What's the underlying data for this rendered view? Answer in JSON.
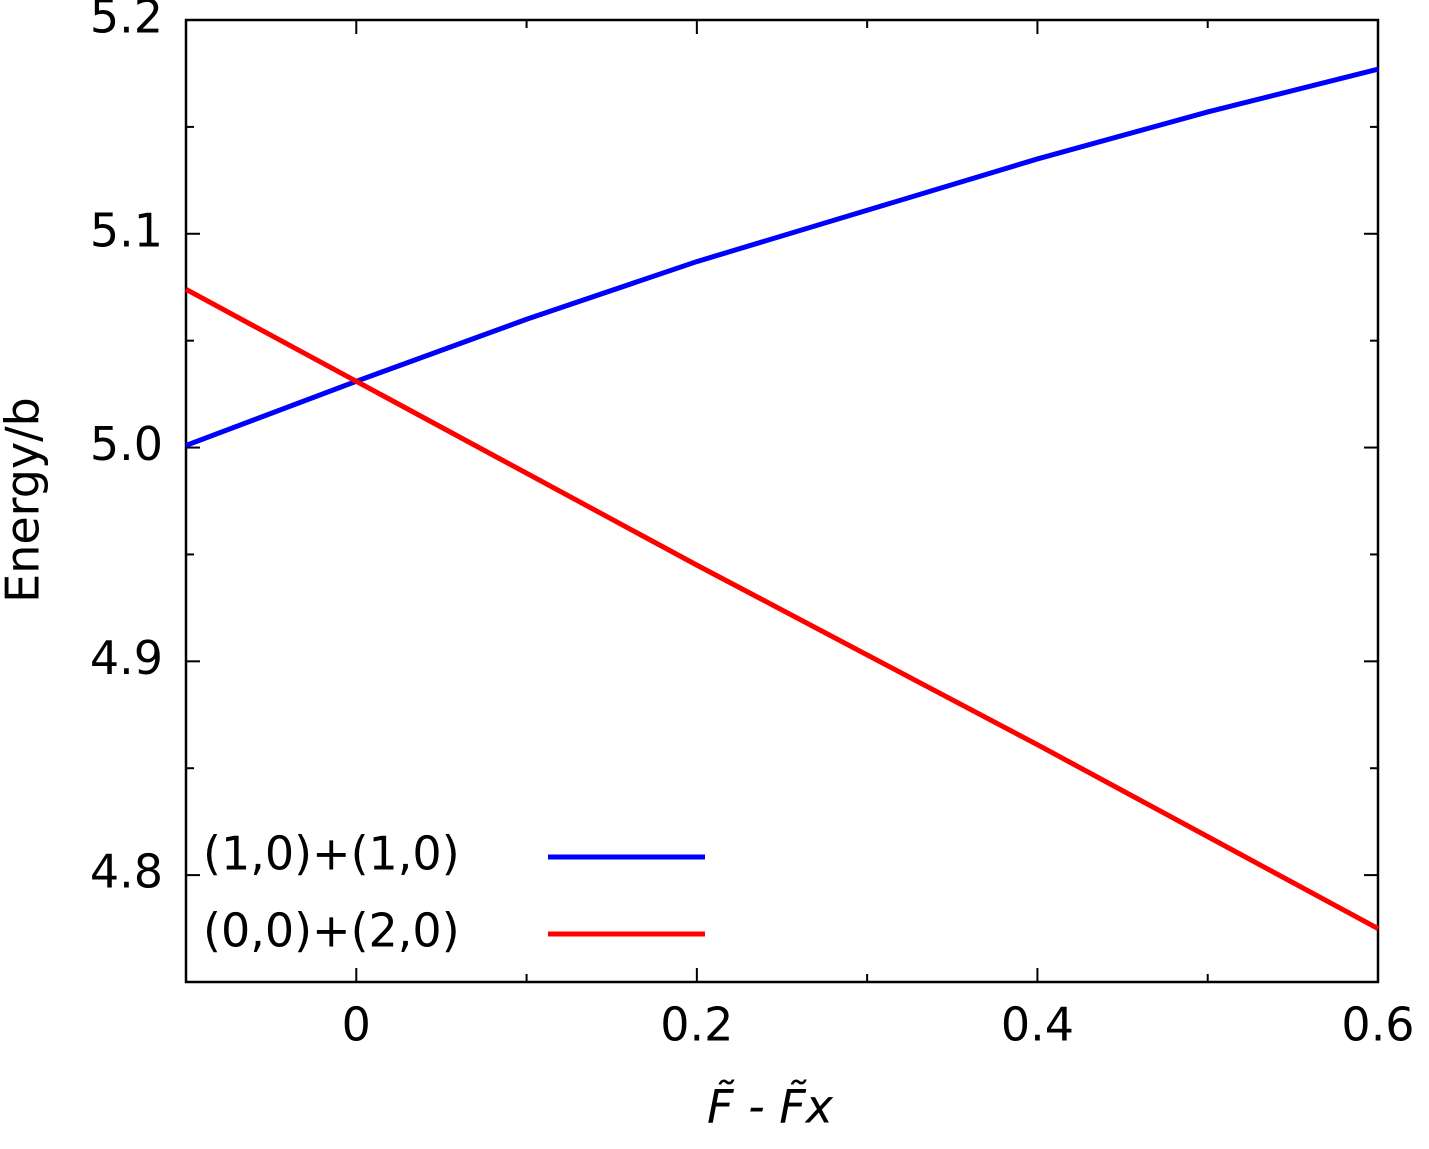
{
  "chart_data": {
    "type": "line",
    "xlabel": "F̃ - F̃x",
    "ylabel": "Energy/b",
    "x": [
      -0.1,
      0,
      0.1,
      0.2,
      0.3,
      0.4,
      0.5,
      0.6
    ],
    "series": [
      {
        "name": "(1,0)+(1,0)",
        "color": "#0000ff",
        "values": [
          5.001,
          5.031,
          5.06,
          5.087,
          5.111,
          5.135,
          5.157,
          5.177
        ]
      },
      {
        "name": "(0,0)+(2,0)",
        "color": "#ff0000",
        "values": [
          5.074,
          5.031,
          4.988,
          4.945,
          4.903,
          4.861,
          4.818,
          4.775
        ]
      }
    ],
    "xlim": [
      -0.1,
      0.6
    ],
    "xticks": [
      0,
      0.2,
      0.4,
      0.6
    ],
    "ylim": [
      4.75,
      5.2
    ],
    "yticks": [
      4.8,
      4.9,
      {
        "value": 5.0,
        "label": "5.0"
      },
      5.1,
      5.2
    ],
    "legend": "lower left"
  }
}
